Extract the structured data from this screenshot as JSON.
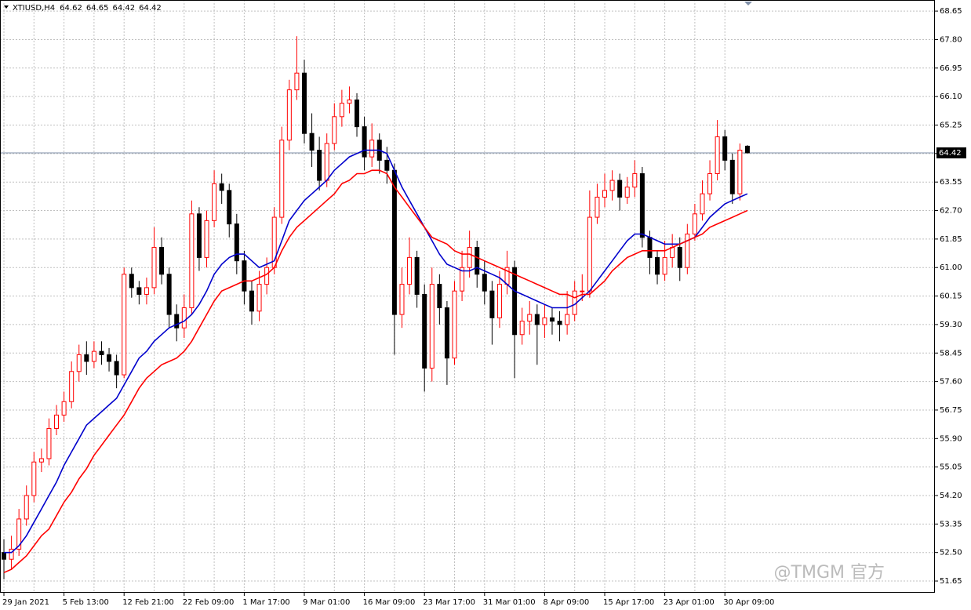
{
  "chart_data": {
    "type": "candlestick",
    "header": {
      "symbol": "XTIUSD,H4",
      "ohlc": [
        64.62,
        64.65,
        64.42,
        64.42
      ]
    },
    "watermark": "@TMGM 官方",
    "categories": [
      "29 Jan 2021",
      null,
      null,
      null,
      null,
      null,
      null,
      null,
      "5 Feb 13:00",
      null,
      null,
      null,
      null,
      null,
      null,
      null,
      "12 Feb 21:00",
      null,
      null,
      null,
      null,
      null,
      null,
      null,
      "22 Feb 09:00",
      null,
      null,
      null,
      null,
      null,
      null,
      null,
      "1 Mar 17:00",
      null,
      null,
      null,
      null,
      null,
      null,
      null,
      "9 Mar 01:00",
      null,
      null,
      null,
      null,
      null,
      null,
      null,
      "16 Mar 09:00",
      null,
      null,
      null,
      null,
      null,
      null,
      null,
      "23 Mar 17:00",
      null,
      null,
      null,
      null,
      null,
      null,
      null,
      "31 Mar 01:00",
      null,
      null,
      null,
      null,
      null,
      null,
      null,
      "8 Apr 09:00",
      null,
      null,
      null,
      null,
      null,
      null,
      null,
      "15 Apr 17:00",
      null,
      null,
      null,
      null,
      null,
      null,
      null,
      "23 Apr 01:00",
      null,
      null,
      null,
      null,
      null,
      null,
      null,
      "30 Apr 09:00",
      null,
      null,
      null
    ],
    "candles": {
      "up_color": "#ff0000",
      "down_color": "#000000",
      "open": [
        52.5,
        52.3,
        52.6,
        53.5,
        54.2,
        55.2,
        55.3,
        56.2,
        56.6,
        57.0,
        57.9,
        58.4,
        58.2,
        58.5,
        58.4,
        58.2,
        57.8,
        60.8,
        60.4,
        60.2,
        60.4,
        61.6,
        60.8,
        59.6,
        59.2,
        59.8,
        62.6,
        61.3,
        62.4,
        63.5,
        63.3,
        62.3,
        61.2,
        60.3,
        59.7,
        60.5,
        61.0,
        62.5,
        64.8,
        66.3,
        66.8,
        65.0,
        64.5,
        63.6,
        64.7,
        65.5,
        65.9,
        66.0,
        65.2,
        64.3,
        64.8,
        64.2,
        63.9,
        59.6,
        60.5,
        61.3,
        60.2,
        58.0,
        60.5,
        59.8,
        58.3,
        60.3,
        61.0,
        61.6,
        60.8,
        60.3,
        59.5,
        60.5,
        61.0,
        59.0,
        59.4,
        59.6,
        59.3,
        59.5,
        59.4,
        59.3,
        59.6,
        60.3,
        60.3,
        62.5,
        63.1,
        63.3,
        63.6,
        63.1,
        63.4,
        63.8,
        61.9,
        61.3,
        60.8,
        61.3,
        61.6,
        61.0,
        62.0,
        62.6,
        63.2,
        63.8,
        64.9,
        64.2,
        63.2,
        64.62
      ],
      "high": [
        52.9,
        53.0,
        53.8,
        54.5,
        55.5,
        55.6,
        56.5,
        56.9,
        57.3,
        58.2,
        58.7,
        58.8,
        58.8,
        58.8,
        58.6,
        58.4,
        61.0,
        61.0,
        60.6,
        60.7,
        62.2,
        61.9,
        61.0,
        59.9,
        60.2,
        63.0,
        62.8,
        62.7,
        63.9,
        63.8,
        63.5,
        62.6,
        61.5,
        60.6,
        60.9,
        61.3,
        62.8,
        65.2,
        66.6,
        67.9,
        67.2,
        65.6,
        64.9,
        65.0,
        65.9,
        66.3,
        66.4,
        66.2,
        65.5,
        65.3,
        65.0,
        64.6,
        64.1,
        61.0,
        61.9,
        61.5,
        60.5,
        61.0,
        60.8,
        60.0,
        60.6,
        61.5,
        62.1,
        61.8,
        61.2,
        60.6,
        60.9,
        61.5,
        61.2,
        59.8,
        60.0,
        59.9,
        59.9,
        59.8,
        59.7,
        60.3,
        60.6,
        60.8,
        63.3,
        63.5,
        63.8,
        63.9,
        63.8,
        63.7,
        64.2,
        64.0,
        62.1,
        61.5,
        61.8,
        62.0,
        61.9,
        62.3,
        62.9,
        63.6,
        64.2,
        65.4,
        65.1,
        64.4,
        64.7,
        64.65
      ],
      "low": [
        51.7,
        52.0,
        52.4,
        53.3,
        54.0,
        54.9,
        55.1,
        56.0,
        56.4,
        56.8,
        57.6,
        57.8,
        58.0,
        58.1,
        57.9,
        57.4,
        57.7,
        60.1,
        59.9,
        59.9,
        60.2,
        60.5,
        59.2,
        58.8,
        58.9,
        59.6,
        60.9,
        61.0,
        62.2,
        62.9,
        61.9,
        60.8,
        59.9,
        59.3,
        59.4,
        60.2,
        60.8,
        62.3,
        64.5,
        66.0,
        64.7,
        64.0,
        63.3,
        63.4,
        64.5,
        65.2,
        65.6,
        64.9,
        63.9,
        64.0,
        63.8,
        63.5,
        58.4,
        59.2,
        60.2,
        59.8,
        57.3,
        57.6,
        59.3,
        57.5,
        58.1,
        60.0,
        60.7,
        60.4,
        59.9,
        58.7,
        59.2,
        60.2,
        57.7,
        58.7,
        59.0,
        58.1,
        58.9,
        59.0,
        58.8,
        59.0,
        59.4,
        60.0,
        60.1,
        62.3,
        62.8,
        63.0,
        62.7,
        62.9,
        63.1,
        61.6,
        60.8,
        60.5,
        60.6,
        61.0,
        60.6,
        60.8,
        61.8,
        62.4,
        63.0,
        63.6,
        63.9,
        62.9,
        63.0,
        64.42
      ],
      "close": [
        52.3,
        52.6,
        53.5,
        54.2,
        55.2,
        55.3,
        56.2,
        56.6,
        57.0,
        57.9,
        58.4,
        58.2,
        58.5,
        58.4,
        58.2,
        57.8,
        60.8,
        60.4,
        60.2,
        60.4,
        61.6,
        60.8,
        59.6,
        59.2,
        59.8,
        62.6,
        61.3,
        62.4,
        63.5,
        63.3,
        62.3,
        61.2,
        60.3,
        59.7,
        60.5,
        61.0,
        62.5,
        64.8,
        66.3,
        66.8,
        65.0,
        64.5,
        63.6,
        64.7,
        65.5,
        65.9,
        66.0,
        65.2,
        64.3,
        64.8,
        64.2,
        63.9,
        59.6,
        60.5,
        61.3,
        60.2,
        58.0,
        60.5,
        59.8,
        58.3,
        60.3,
        61.0,
        61.6,
        60.8,
        60.3,
        59.5,
        60.5,
        61.0,
        59.0,
        59.4,
        59.6,
        59.3,
        59.5,
        59.4,
        59.3,
        59.6,
        60.3,
        60.3,
        62.5,
        63.1,
        63.3,
        63.6,
        63.1,
        63.4,
        63.8,
        61.9,
        61.3,
        60.8,
        61.3,
        61.6,
        61.0,
        62.0,
        62.6,
        63.2,
        63.8,
        64.9,
        64.2,
        63.2,
        64.5,
        64.42
      ]
    },
    "series": [
      {
        "color": "#0000cc",
        "values": [
          52.5,
          52.5,
          52.7,
          53.0,
          53.4,
          53.8,
          54.2,
          54.6,
          55.1,
          55.5,
          55.9,
          56.3,
          56.5,
          56.7,
          56.9,
          57.1,
          57.5,
          57.9,
          58.3,
          58.5,
          58.8,
          59.0,
          59.2,
          59.3,
          59.4,
          59.6,
          59.9,
          60.3,
          60.8,
          61.1,
          61.3,
          61.4,
          61.4,
          61.2,
          61.0,
          61.1,
          61.2,
          61.8,
          62.4,
          62.7,
          63.0,
          63.2,
          63.4,
          63.6,
          63.9,
          64.1,
          64.3,
          64.4,
          64.5,
          64.5,
          64.5,
          64.4,
          63.9,
          63.4,
          63.0,
          62.6,
          62.2,
          61.8,
          61.4,
          61.1,
          61.0,
          60.9,
          60.9,
          61.0,
          60.9,
          60.8,
          60.7,
          60.5,
          60.3,
          60.2,
          60.1,
          60.0,
          59.9,
          59.8,
          59.8,
          59.8,
          59.9,
          60.1,
          60.3,
          60.6,
          60.9,
          61.2,
          61.5,
          61.8,
          62.0,
          62.0,
          61.9,
          61.8,
          61.7,
          61.7,
          61.7,
          61.8,
          61.9,
          62.2,
          62.5,
          62.7,
          62.9,
          63.0,
          63.1,
          63.2
        ]
      },
      {
        "color": "#ff0000",
        "values": [
          51.9,
          52.0,
          52.2,
          52.4,
          52.7,
          53.0,
          53.2,
          53.6,
          54.0,
          54.3,
          54.7,
          55.0,
          55.4,
          55.7,
          56.0,
          56.3,
          56.6,
          57.0,
          57.4,
          57.7,
          57.9,
          58.1,
          58.2,
          58.3,
          58.5,
          58.8,
          59.2,
          59.6,
          60.0,
          60.3,
          60.4,
          60.5,
          60.6,
          60.6,
          60.7,
          60.8,
          61.0,
          61.5,
          61.9,
          62.2,
          62.4,
          62.6,
          62.8,
          63.0,
          63.2,
          63.5,
          63.6,
          63.8,
          63.8,
          63.9,
          63.9,
          63.8,
          63.4,
          63.1,
          62.8,
          62.5,
          62.2,
          61.9,
          61.8,
          61.7,
          61.5,
          61.4,
          61.4,
          61.3,
          61.2,
          61.1,
          61.0,
          60.9,
          60.8,
          60.7,
          60.6,
          60.5,
          60.4,
          60.3,
          60.2,
          60.2,
          60.1,
          60.2,
          60.2,
          60.4,
          60.6,
          60.9,
          61.1,
          61.3,
          61.4,
          61.5,
          61.5,
          61.5,
          61.5,
          61.6,
          61.7,
          61.8,
          61.9,
          62.0,
          62.2,
          62.3,
          62.4,
          62.5,
          62.6,
          62.7
        ]
      }
    ],
    "last_price": 64.42,
    "last_price_color": "#7f8fa8",
    "ylim": [
      51.3,
      68.98
    ],
    "yticks": [
      68.65,
      {
        "value": 67.8,
        "label": "67.80"
      },
      66.95,
      {
        "value": 66.1,
        "label": "66.10"
      },
      65.25,
      {
        "value": 64.4,
        "label": "64.40"
      },
      63.55,
      {
        "value": 62.7,
        "label": "62.70"
      },
      61.85,
      {
        "value": 61.0,
        "label": "61.00"
      },
      60.15,
      {
        "value": 59.3,
        "label": "59.30"
      },
      58.45,
      {
        "value": 57.6,
        "label": "57.60"
      },
      56.75,
      {
        "value": 55.9,
        "label": "55.90"
      },
      55.05,
      {
        "value": 54.2,
        "label": "54.20"
      },
      53.35,
      {
        "value": 52.5,
        "label": "52.50"
      },
      51.65
    ],
    "grid": true
  }
}
